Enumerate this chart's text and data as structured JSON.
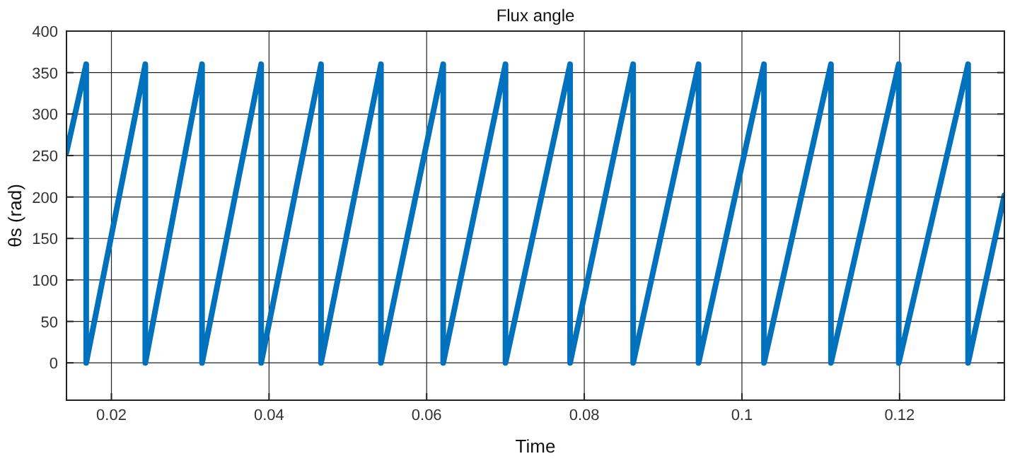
{
  "chart_data": {
    "type": "line",
    "title": "Flux angle",
    "xlabel": "Time",
    "ylabel": "θs (rad)",
    "xlim": [
      0.0143,
      0.1333
    ],
    "ylim": [
      -45,
      400
    ],
    "xticks": [
      0.02,
      0.04,
      0.06,
      0.08,
      0.1,
      0.12
    ],
    "yticks": [
      0,
      50,
      100,
      150,
      200,
      250,
      300,
      350,
      400
    ],
    "grid": true,
    "line_style": "solid",
    "marker": "none",
    "series": [
      {
        "color": "#0072bd",
        "x": [
          0.0143,
          0.0168,
          0.0168,
          0.0243,
          0.0243,
          0.0315,
          0.0315,
          0.039,
          0.039,
          0.0466,
          0.0466,
          0.0542,
          0.0542,
          0.0621,
          0.0621,
          0.07,
          0.07,
          0.0782,
          0.0782,
          0.0862,
          0.0862,
          0.0945,
          0.0945,
          0.1028,
          0.1028,
          0.1113,
          0.1113,
          0.1199,
          0.1199,
          0.1287,
          0.1287,
          0.1333
        ],
        "values": [
          254,
          360,
          0,
          360,
          0,
          360,
          0,
          360,
          0,
          360,
          0,
          360,
          0,
          360,
          0,
          360,
          0,
          360,
          0,
          360,
          0,
          360,
          0,
          360,
          0,
          360,
          0,
          360,
          0,
          360,
          0,
          202
        ]
      }
    ]
  }
}
